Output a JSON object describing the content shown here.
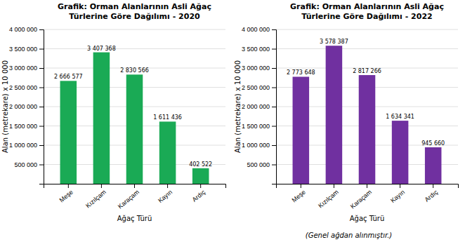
{
  "chart_data": [
    {
      "type": "bar",
      "title": "Grafik: Orman Alanlarının Asli Ağaç\nTürlerine Göre Dağılımı - 2020",
      "xlabel": "Ağaç Türü",
      "ylabel": "Alan (metrekare) x 10 000",
      "categories": [
        "Meşe",
        "Kızılçam",
        "Karaçam",
        "Kayın",
        "Ardıç"
      ],
      "values": [
        2666577,
        3407368,
        2830566,
        1611436,
        402522
      ],
      "value_labels": [
        "2 666 577",
        "3 407 368",
        "2 830 566",
        "1 611 436",
        "402 522"
      ],
      "data_labels": true,
      "color": "#1aaa55",
      "ylim": [
        0,
        4000000
      ],
      "yticks": [
        {
          "value": 500000,
          "label": "500 000"
        },
        {
          "value": 1000000,
          "label": "1 000 000"
        },
        {
          "value": 1500000,
          "label": "1 500 000"
        },
        {
          "value": 2000000,
          "label": "2 000 000"
        },
        {
          "value": 2500000,
          "label": "2 500 000"
        },
        {
          "value": 3000000,
          "label": "3 000 000"
        },
        {
          "value": 3500000,
          "label": "3 500 000"
        },
        {
          "value": 4000000,
          "label": "4 000 000"
        }
      ],
      "grid": true
    },
    {
      "type": "bar",
      "title": "Grafik: Orman Alanlarının Asli Ağaç\nTürlerine Göre Dağılımı - 2022",
      "xlabel": "Ağaç Türü",
      "ylabel": "Alan (metrekare) x 10 000",
      "categories": [
        "Meşe",
        "Kızılçam",
        "Karaçam",
        "Kayın",
        "Ardıç"
      ],
      "values": [
        2773648,
        3578387,
        2817266,
        1634341,
        945660
      ],
      "value_labels": [
        "2 773 648",
        "3 578 387",
        "2 817 266",
        "1 634 341",
        "945 660"
      ],
      "data_labels": true,
      "color": "#7030a0",
      "ylim": [
        0,
        4000000
      ],
      "yticks": [
        {
          "value": 500000,
          "label": "500 000"
        },
        {
          "value": 1000000,
          "label": "1 000 000"
        },
        {
          "value": 1500000,
          "label": "1 500 000"
        },
        {
          "value": 2000000,
          "label": "2 000 000"
        },
        {
          "value": 2500000,
          "label": "2 500 000"
        },
        {
          "value": 3000000,
          "label": "3 000 000"
        },
        {
          "value": 3500000,
          "label": "3 500 000"
        },
        {
          "value": 4000000,
          "label": "4 000 000"
        }
      ],
      "grid": true,
      "annotations": [
        "(Genel ağdan alınmıştır.)"
      ]
    }
  ]
}
